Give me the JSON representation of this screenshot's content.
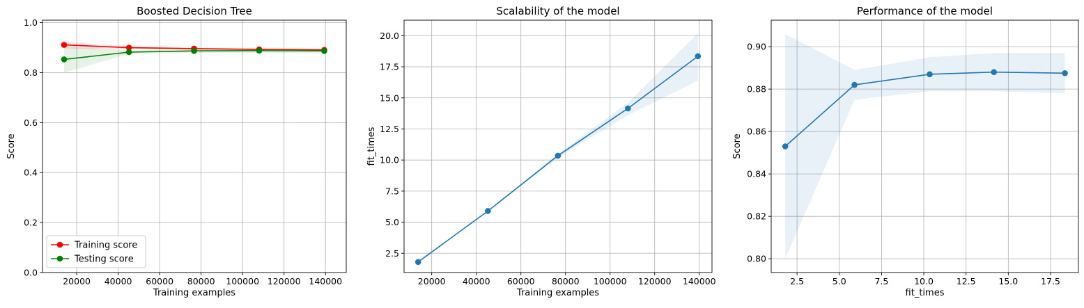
{
  "chart_data": [
    {
      "type": "line",
      "title": "Boosted Decision Tree",
      "xlabel": "Training examples",
      "ylabel": "Score",
      "xlim": [
        3500,
        150000
      ],
      "ylim": [
        0,
        1.01
      ],
      "xticks": [
        20000,
        40000,
        60000,
        80000,
        100000,
        120000,
        140000
      ],
      "xtick_labels": [
        "20000",
        "40000",
        "60000",
        "80000",
        "100000",
        "120000",
        "140000"
      ],
      "yticks": [
        0,
        0.2,
        0.4,
        0.6,
        0.8,
        1.0
      ],
      "ytick_labels": [
        "0.0",
        "0.2",
        "0.4",
        "0.6",
        "0.8",
        "1.0"
      ],
      "grid": true,
      "legend": "lower-left",
      "x": [
        13900,
        45200,
        76600,
        108000,
        139400
      ],
      "series": [
        {
          "name": "Training score",
          "color": "#ff0000",
          "values": [
            0.911,
            0.9,
            0.896,
            0.893,
            0.891
          ],
          "band_lower": [
            0.895,
            0.894,
            0.892,
            0.89,
            0.888
          ],
          "band_upper": [
            0.922,
            0.906,
            0.9,
            0.896,
            0.894
          ]
        },
        {
          "name": "Testing score",
          "color": "#008000",
          "values": [
            0.853,
            0.882,
            0.887,
            0.888,
            0.887
          ],
          "band_lower": [
            0.8,
            0.875,
            0.879,
            0.879,
            0.878
          ],
          "band_upper": [
            0.906,
            0.889,
            0.895,
            0.897,
            0.897
          ]
        }
      ]
    },
    {
      "type": "line",
      "title": "Scalability of the model",
      "xlabel": "Training examples",
      "ylabel": "fit_times",
      "xlim": [
        7600,
        145700
      ],
      "ylim": [
        0.95,
        21.25
      ],
      "xticks": [
        20000,
        40000,
        60000,
        80000,
        100000,
        120000,
        140000
      ],
      "xtick_labels": [
        "20000",
        "40000",
        "60000",
        "80000",
        "100000",
        "120000",
        "140000"
      ],
      "yticks": [
        2.5,
        5.0,
        7.5,
        10.0,
        12.5,
        15.0,
        17.5,
        20.0
      ],
      "ytick_labels": [
        "2.5",
        "5.0",
        "7.5",
        "10.0",
        "12.5",
        "15.0",
        "17.5",
        "20.0"
      ],
      "grid": true,
      "x": [
        13900,
        45200,
        76600,
        108000,
        139400
      ],
      "series": [
        {
          "color": "#1f77b4",
          "values": [
            1.8,
            5.9,
            10.35,
            14.15,
            18.35
          ],
          "band_lower": [
            1.75,
            5.85,
            10.2,
            13.6,
            16.4
          ],
          "band_upper": [
            1.85,
            5.95,
            10.5,
            14.6,
            20.2
          ]
        }
      ]
    },
    {
      "type": "line",
      "title": "Performance of the model",
      "xlabel": "fit_times",
      "ylabel": "Score",
      "xlim": [
        0.97,
        19.15
      ],
      "ylim": [
        0.7935,
        0.9125
      ],
      "xticks": [
        2.5,
        5.0,
        7.5,
        10.0,
        12.5,
        15.0,
        17.5
      ],
      "xtick_labels": [
        "2.5",
        "5.0",
        "7.5",
        "10.0",
        "12.5",
        "15.0",
        "17.5"
      ],
      "yticks": [
        0.8,
        0.82,
        0.84,
        0.86,
        0.88,
        0.9
      ],
      "ytick_labels": [
        "0.80",
        "0.82",
        "0.84",
        "0.86",
        "0.88",
        "0.90"
      ],
      "grid": true,
      "x": [
        1.8,
        5.9,
        10.35,
        14.15,
        18.35
      ],
      "series": [
        {
          "color": "#1f77b4",
          "values": [
            0.853,
            0.882,
            0.887,
            0.888,
            0.8875
          ],
          "band_lower": [
            0.8,
            0.875,
            0.879,
            0.879,
            0.878
          ],
          "band_upper": [
            0.906,
            0.889,
            0.895,
            0.897,
            0.897
          ]
        }
      ]
    }
  ]
}
